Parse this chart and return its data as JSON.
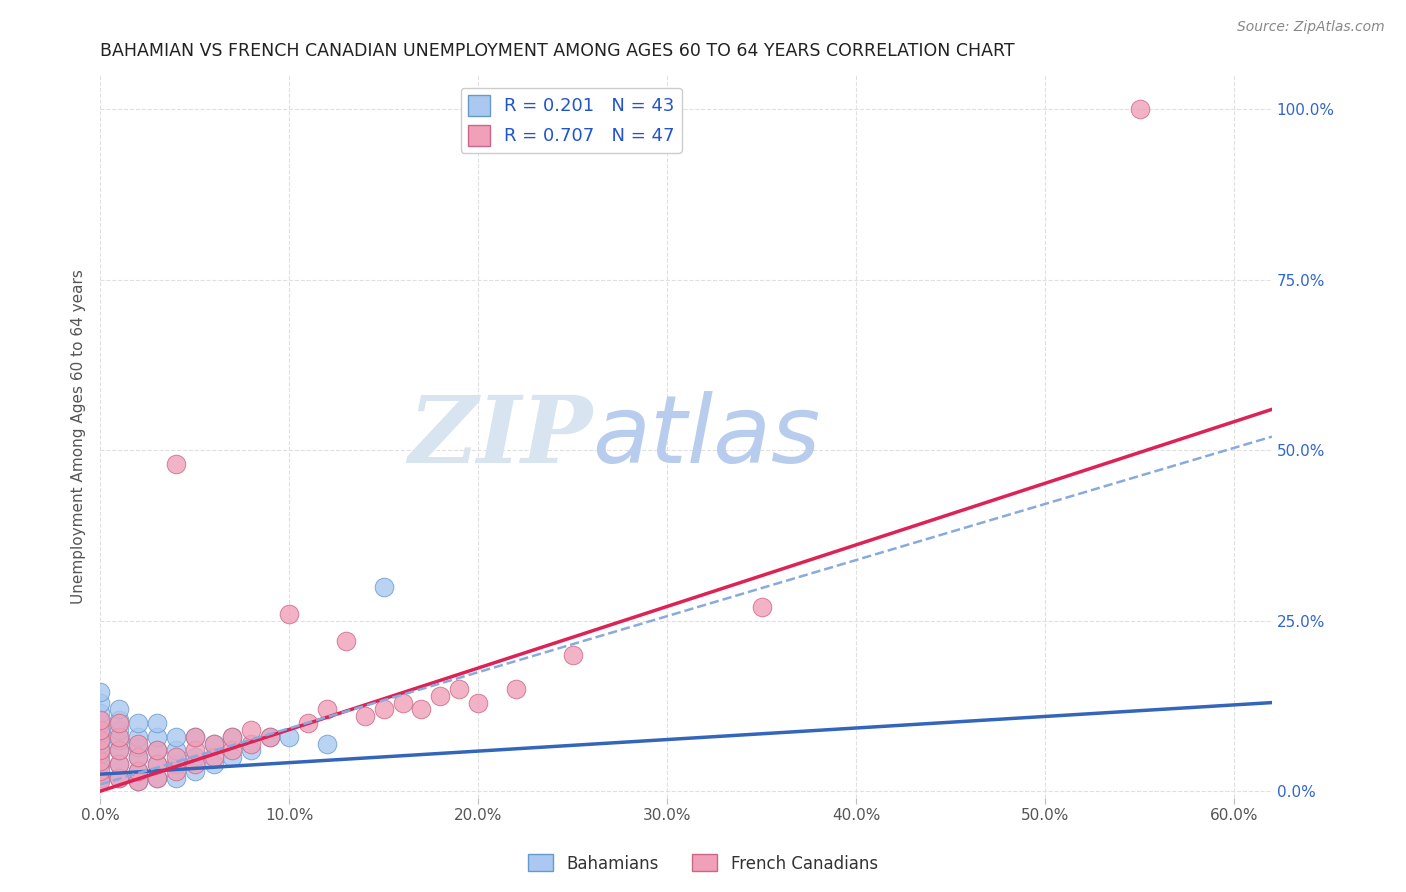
{
  "title": "BAHAMIAN VS FRENCH CANADIAN UNEMPLOYMENT AMONG AGES 60 TO 64 YEARS CORRELATION CHART",
  "source": "Source: ZipAtlas.com",
  "xlabel_vals": [
    0.0,
    0.1,
    0.2,
    0.3,
    0.4,
    0.5,
    0.6
  ],
  "ylabel_vals": [
    0.0,
    0.25,
    0.5,
    0.75,
    1.0
  ],
  "ylabel_label": "Unemployment Among Ages 60 to 64 years",
  "xlim": [
    0.0,
    0.62
  ],
  "ylim": [
    -0.01,
    1.05
  ],
  "R_bahamian": 0.201,
  "N_bahamian": 43,
  "R_french": 0.707,
  "N_french": 47,
  "bahamian_color": "#aac8f0",
  "bahamian_edge": "#6699cc",
  "french_color": "#f0a0b8",
  "french_edge": "#cc6688",
  "line_bahamian_color": "#3366bb",
  "line_french_color": "#dd2255",
  "dash_line_color": "#88aadd",
  "watermark_zip_color": "#d8e4f0",
  "watermark_atlas_color": "#b8ccee",
  "background_color": "#ffffff",
  "grid_color": "#e0e0e0",
  "legend_text_color": "#2255cc",
  "title_color": "#222222",
  "bah_line_x0": 0.0,
  "bah_line_y0": 0.025,
  "bah_line_x1": 0.62,
  "bah_line_y1": 0.13,
  "fr_line_x0": 0.0,
  "fr_line_y0": 0.0,
  "fr_line_x1": 0.62,
  "fr_line_y1": 0.56,
  "dash_line_x0": 0.0,
  "dash_line_y0": 0.01,
  "dash_line_x1": 0.62,
  "dash_line_y1": 0.52,
  "bahamian_x": [
    0.0,
    0.0,
    0.0,
    0.0,
    0.0,
    0.0,
    0.0,
    0.0,
    0.0,
    0.01,
    0.01,
    0.01,
    0.01,
    0.01,
    0.01,
    0.01,
    0.02,
    0.02,
    0.02,
    0.02,
    0.02,
    0.02,
    0.03,
    0.03,
    0.03,
    0.03,
    0.03,
    0.04,
    0.04,
    0.04,
    0.04,
    0.05,
    0.05,
    0.05,
    0.06,
    0.06,
    0.07,
    0.07,
    0.08,
    0.09,
    0.1,
    0.12,
    0.15
  ],
  "bahamian_y": [
    0.02,
    0.04,
    0.055,
    0.07,
    0.085,
    0.1,
    0.115,
    0.13,
    0.145,
    0.02,
    0.04,
    0.06,
    0.075,
    0.09,
    0.105,
    0.12,
    0.015,
    0.03,
    0.05,
    0.065,
    0.08,
    0.1,
    0.02,
    0.04,
    0.06,
    0.08,
    0.1,
    0.02,
    0.04,
    0.06,
    0.08,
    0.03,
    0.05,
    0.08,
    0.04,
    0.07,
    0.05,
    0.08,
    0.06,
    0.08,
    0.08,
    0.07,
    0.3
  ],
  "french_x": [
    0.0,
    0.0,
    0.0,
    0.0,
    0.0,
    0.0,
    0.0,
    0.01,
    0.01,
    0.01,
    0.01,
    0.01,
    0.02,
    0.02,
    0.02,
    0.02,
    0.03,
    0.03,
    0.03,
    0.04,
    0.04,
    0.04,
    0.05,
    0.05,
    0.05,
    0.06,
    0.06,
    0.07,
    0.07,
    0.08,
    0.08,
    0.09,
    0.1,
    0.11,
    0.12,
    0.13,
    0.14,
    0.15,
    0.16,
    0.17,
    0.18,
    0.19,
    0.2,
    0.22,
    0.25,
    0.35,
    0.55
  ],
  "french_y": [
    0.015,
    0.03,
    0.045,
    0.06,
    0.075,
    0.09,
    0.105,
    0.02,
    0.04,
    0.06,
    0.08,
    0.1,
    0.015,
    0.03,
    0.05,
    0.07,
    0.02,
    0.04,
    0.06,
    0.03,
    0.05,
    0.48,
    0.04,
    0.06,
    0.08,
    0.05,
    0.07,
    0.06,
    0.08,
    0.07,
    0.09,
    0.08,
    0.26,
    0.1,
    0.12,
    0.22,
    0.11,
    0.12,
    0.13,
    0.12,
    0.14,
    0.15,
    0.13,
    0.15,
    0.2,
    0.27,
    1.0
  ]
}
